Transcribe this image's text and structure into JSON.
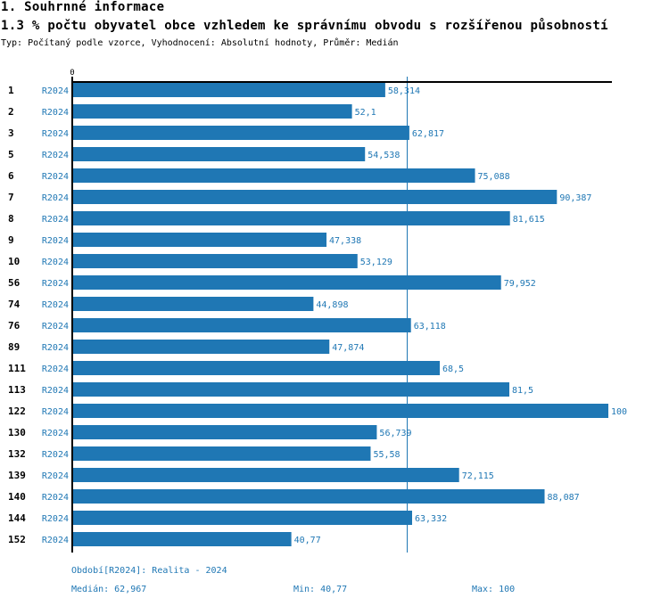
{
  "header": {
    "section_title": "1. Souhrnné informace",
    "chart_title": "1.3 % počtu obyvatel obce vzhledem ke správnímu obvodu s rozšířenou působností",
    "subtitle": "Typ: Počítaný podle vzorce, Vyhodnocení: Absolutní hodnoty, Průměr: Medián"
  },
  "colors": {
    "bar": "#1f77b4",
    "axis": "#000000",
    "median_line": "#1f77b4",
    "text_accent": "#1f77b4"
  },
  "chart_data": {
    "type": "bar",
    "orientation": "horizontal",
    "title": "1.3 % počtu obyvatel obce vzhledem ke správnímu obvodu s rozšířenou působností",
    "xlabel": "",
    "ylabel": "",
    "x_tick_labels": [
      "0"
    ],
    "xlim": [
      0,
      100
    ],
    "grid": false,
    "series_name": "R2024",
    "categories": [
      "1",
      "2",
      "3",
      "5",
      "6",
      "7",
      "8",
      "9",
      "10",
      "56",
      "74",
      "76",
      "89",
      "111",
      "113",
      "122",
      "130",
      "132",
      "139",
      "140",
      "144",
      "152"
    ],
    "values": [
      58.314,
      52.1,
      62.817,
      54.538,
      75.088,
      90.387,
      81.615,
      47.338,
      53.129,
      79.952,
      44.898,
      63.118,
      47.874,
      68.5,
      81.5,
      100,
      56.739,
      55.58,
      72.115,
      88.087,
      63.332,
      40.77
    ],
    "value_labels": [
      "58,314",
      "52,1",
      "62,817",
      "54,538",
      "75,088",
      "90,387",
      "81,615",
      "47,338",
      "53,129",
      "79,952",
      "44,898",
      "63,118",
      "47,874",
      "68,5",
      "81,5",
      "100",
      "56,739",
      "55,58",
      "72,115",
      "88,087",
      "63,332",
      "40,77"
    ],
    "reference_line": {
      "name": "Medián",
      "value": 62.967
    }
  },
  "footer": {
    "period": "Období[R2024]: Realita - 2024",
    "median": "Medián: 62,967",
    "min": "Min: 40,77",
    "max": "Max: 100"
  }
}
